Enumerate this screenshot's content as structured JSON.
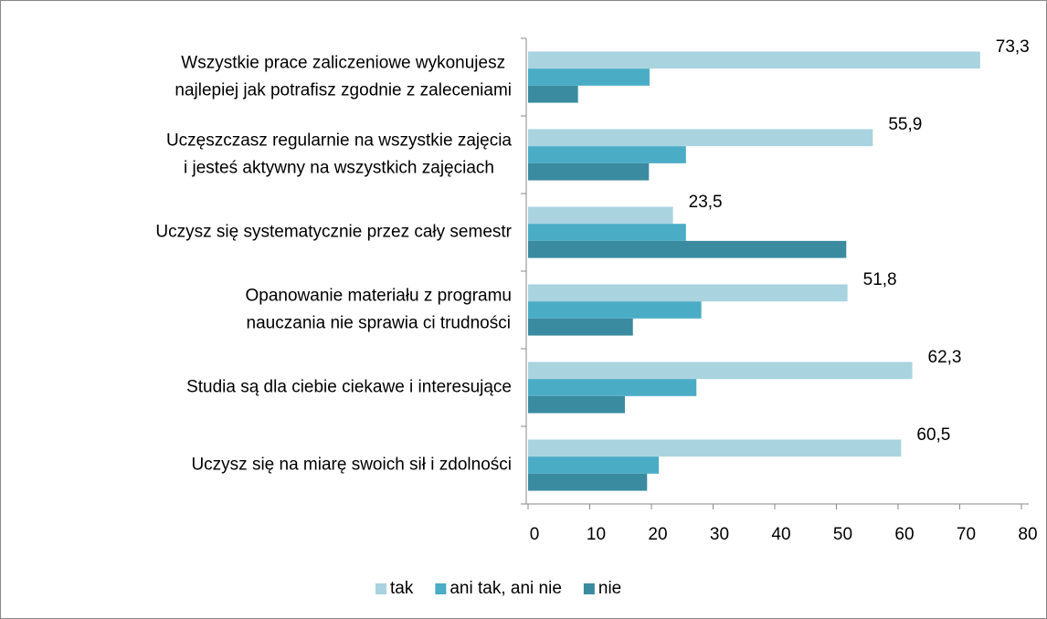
{
  "chart_data": {
    "type": "bar",
    "orientation": "horizontal",
    "categories": [
      "Wszystkie prace zaliczeniowe wykonujesz najlepiej jak potrafisz zgodnie z zaleceniami",
      "Uczęszczasz regularnie na wszystkie zajęcia i jesteś aktywny na wszystkich zajęciach",
      "Uczysz się systematycznie przez cały semestr",
      "Opanowanie materiału z programu nauczania nie sprawia ci trudności",
      "Studia są dla ciebie ciekawe i interesujące",
      "Uczysz się na miarę swoich sił i zdolności"
    ],
    "series": [
      {
        "name": "tak",
        "color": "#a9d4df",
        "values": [
          73.3,
          55.9,
          23.5,
          51.8,
          62.3,
          60.5
        ],
        "value_labels": [
          "73,3",
          "55,9",
          "23,5",
          "51,8",
          "62,3",
          "60,5"
        ]
      },
      {
        "name": "ani tak, ani nie",
        "color": "#4bacc6",
        "values": [
          19.7,
          25.6,
          25.6,
          28.1,
          27.3,
          21.2
        ]
      },
      {
        "name": "nie",
        "color": "#3a8ba0",
        "values": [
          8.1,
          19.6,
          51.6,
          17.0,
          15.7,
          19.3
        ]
      }
    ],
    "xlim": [
      0,
      80
    ],
    "xticks": [
      0,
      10,
      20,
      30,
      40,
      50,
      60,
      70,
      80
    ],
    "legend": "bottom"
  }
}
